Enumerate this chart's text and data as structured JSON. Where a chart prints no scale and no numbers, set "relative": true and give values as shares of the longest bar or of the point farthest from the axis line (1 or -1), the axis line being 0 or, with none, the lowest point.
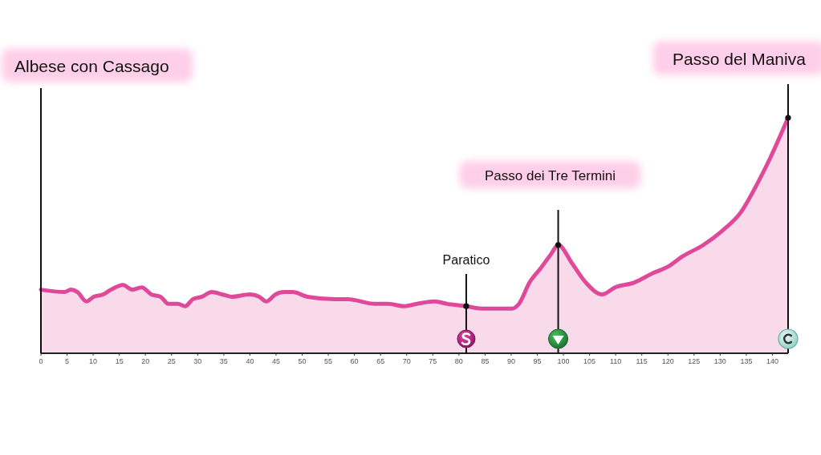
{
  "chart_data": {
    "type": "area",
    "relative": true,
    "x": [
      0,
      4.5,
      5.7,
      7,
      8.7,
      10.1,
      11.9,
      13.4,
      15.7,
      17.5,
      19.3,
      21.1,
      22.9,
      24.4,
      26.2,
      27.6,
      29.1,
      30.8,
      32.7,
      34.7,
      36.5,
      40,
      41.8,
      43.1,
      44.9,
      46.4,
      48.2,
      51,
      56.2,
      58.7,
      63.9,
      66.4,
      69.5,
      72,
      75.4,
      77.7,
      81.4,
      84.3,
      90.2,
      91.5,
      93.5,
      95.6,
      97.6,
      99,
      101.7,
      104.3,
      107.4,
      109.9,
      113.5,
      117.1,
      120.2,
      122.7,
      126.8,
      130.4,
      134,
      137.1,
      139.6,
      143
    ],
    "series": [
      {
        "color": "#e0489a",
        "values": [
          0.27,
          0.26,
          0.27,
          0.26,
          0.22,
          0.24,
          0.25,
          0.27,
          0.29,
          0.27,
          0.28,
          0.25,
          0.24,
          0.21,
          0.21,
          0.2,
          0.23,
          0.24,
          0.26,
          0.25,
          0.24,
          0.25,
          0.24,
          0.22,
          0.25,
          0.26,
          0.26,
          0.24,
          0.23,
          0.23,
          0.21,
          0.21,
          0.2,
          0.21,
          0.22,
          0.21,
          0.2,
          0.19,
          0.19,
          0.21,
          0.3,
          0.36,
          0.42,
          0.46,
          0.38,
          0.3,
          0.25,
          0.28,
          0.3,
          0.34,
          0.37,
          0.41,
          0.46,
          0.52,
          0.6,
          0.72,
          0.83,
          1
        ]
      }
    ],
    "xlim": [
      0,
      143
    ],
    "xticks": [
      0,
      5,
      10,
      15,
      20,
      25,
      30,
      35,
      40,
      45,
      50,
      55,
      60,
      65,
      70,
      75,
      80,
      85,
      90,
      95,
      100,
      105,
      110,
      115,
      120,
      125,
      130,
      135,
      140
    ],
    "ref_lines": [
      {
        "axis": "x",
        "value": 0,
        "label": "Albese con Cassago",
        "color": "#111111"
      },
      {
        "axis": "x",
        "value": 81.4,
        "label": "Paratico",
        "color": "#111111"
      },
      {
        "axis": "x",
        "value": 99,
        "label": "Passo dei Tre Termini",
        "color": "#111111"
      },
      {
        "axis": "x",
        "value": 143,
        "label": "Passo del Maniva",
        "color": "#111111"
      }
    ]
  }
}
